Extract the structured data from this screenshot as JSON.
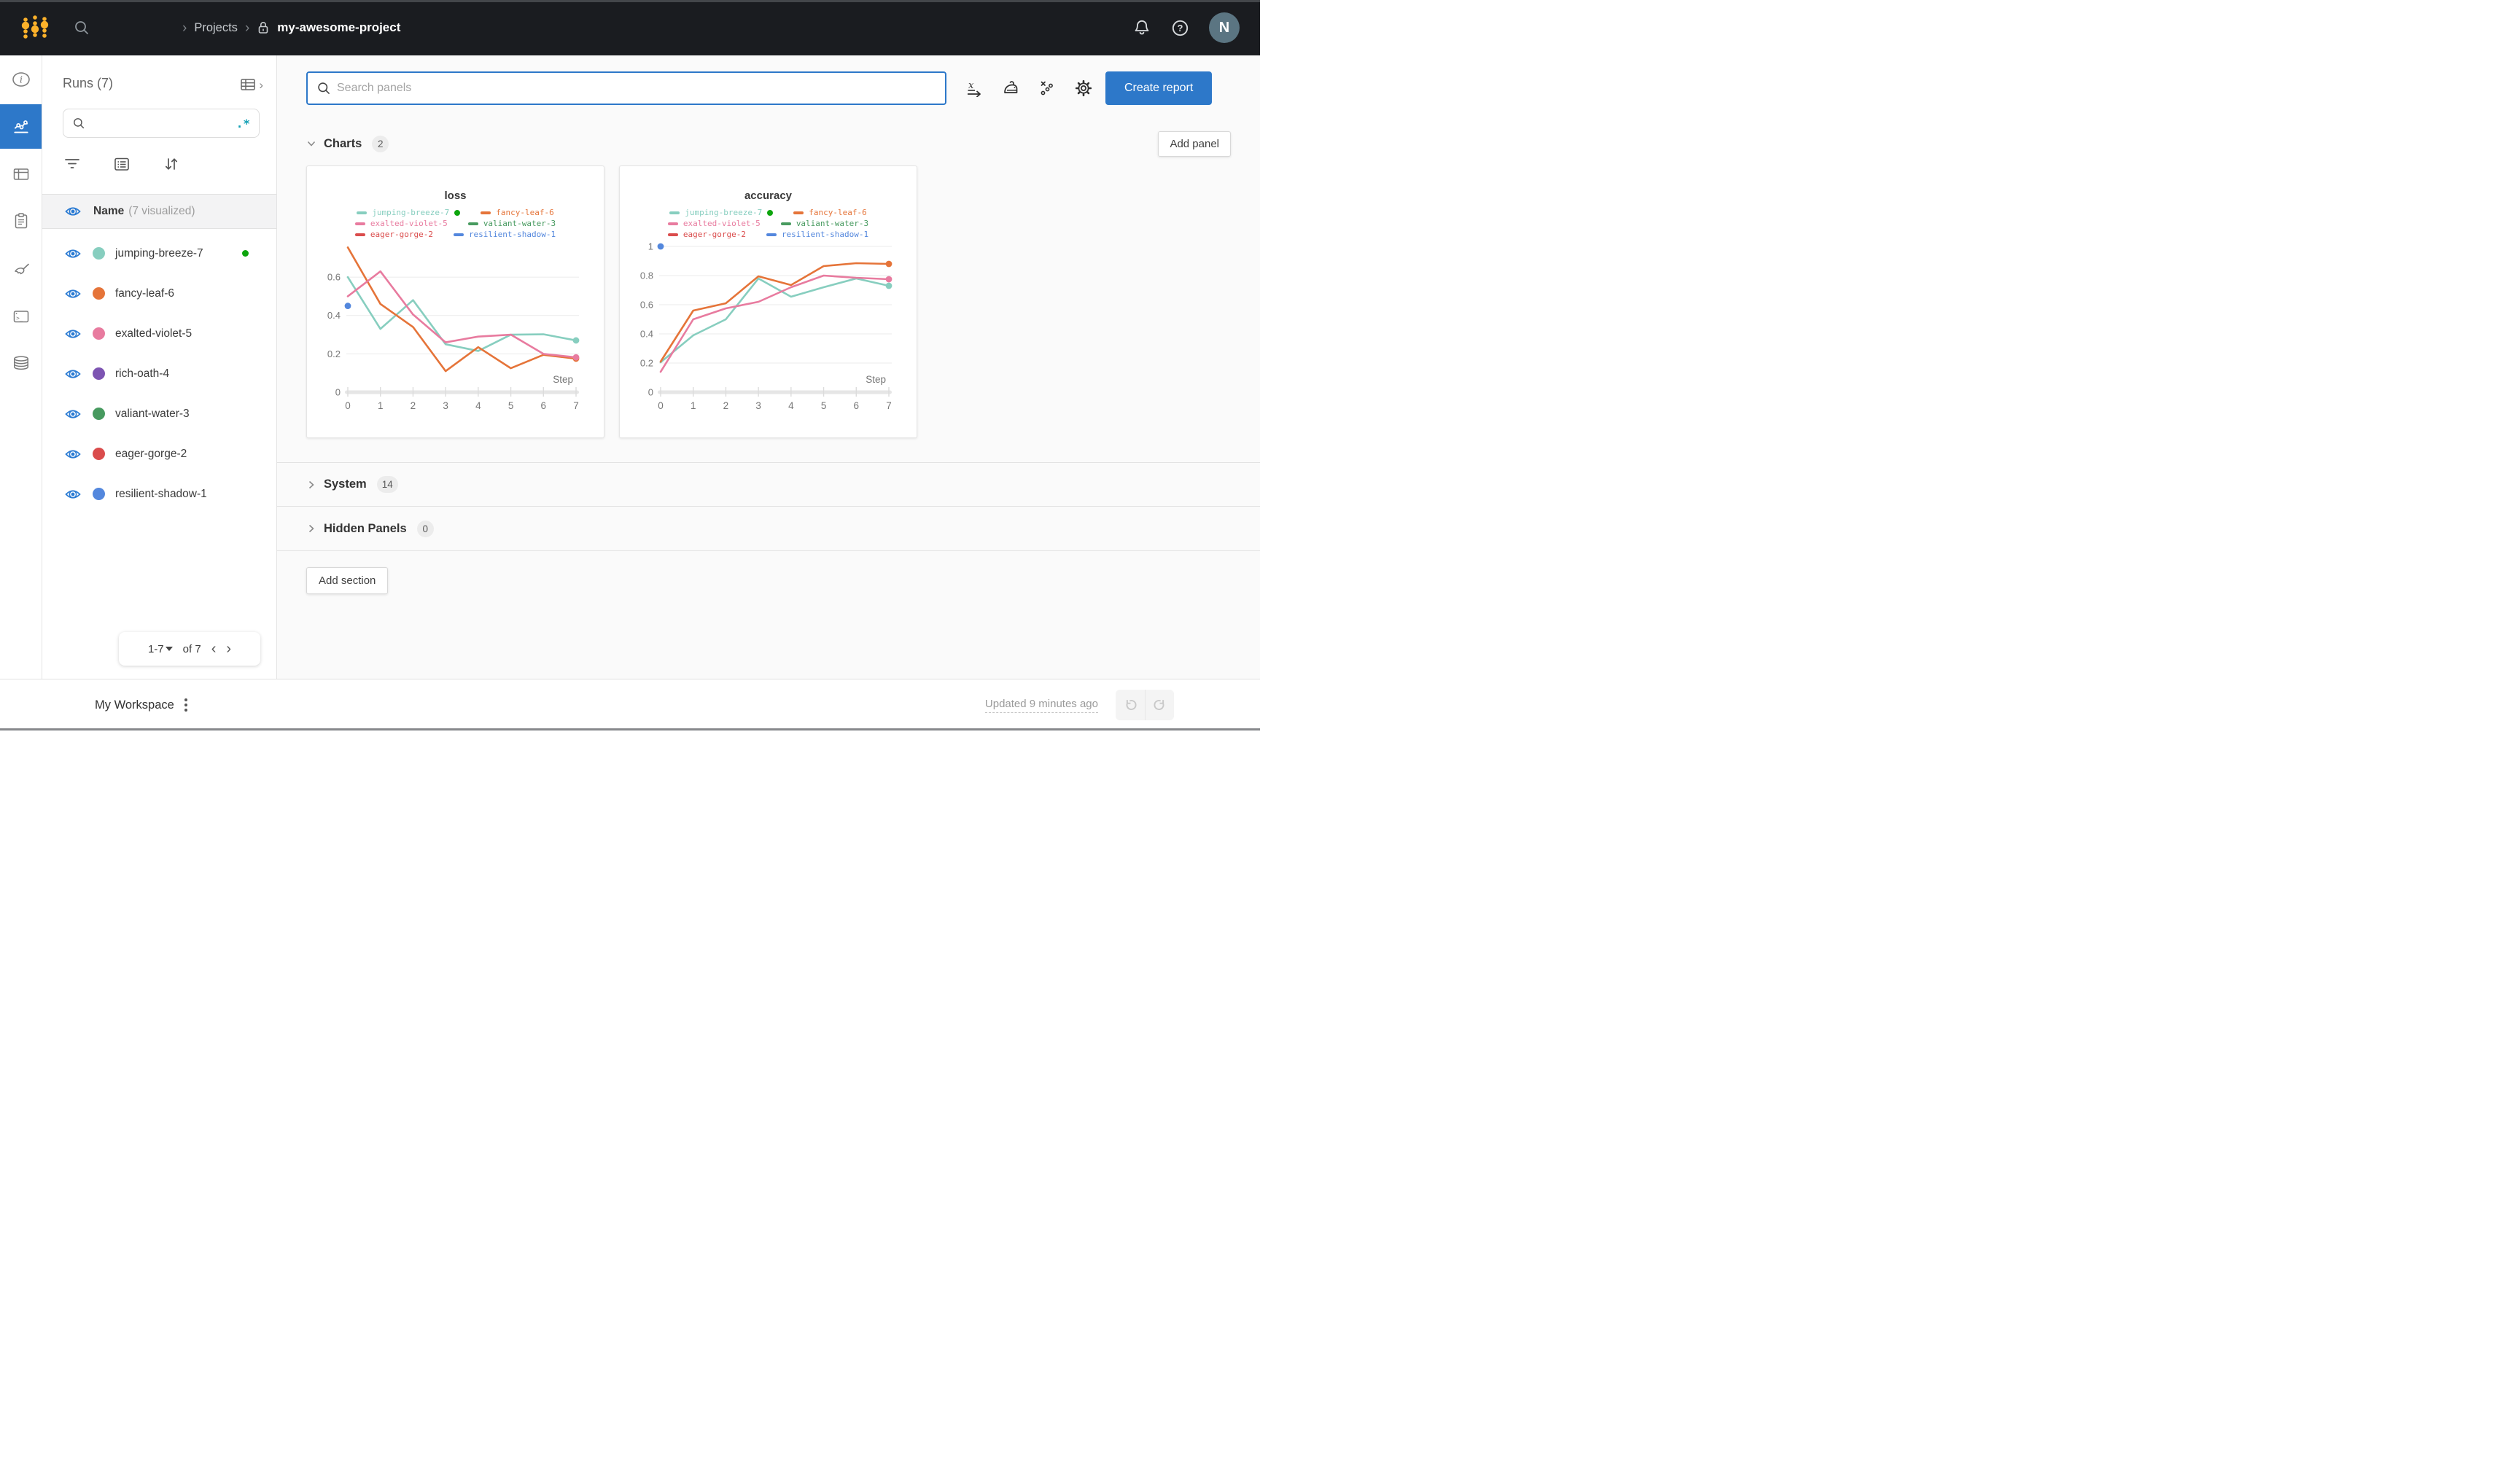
{
  "topbar": {
    "breadcrumb": {
      "projects": "Projects",
      "project": "my-awesome-project"
    },
    "avatar_initial": "N"
  },
  "sidebar": {
    "title": "Runs (7)",
    "regex_toggle": ".*",
    "name_header": {
      "label": "Name",
      "sub": "(7 visualized)"
    },
    "runs": [
      {
        "name": "jumping-breeze-7",
        "color": "#87CEBF",
        "running": true
      },
      {
        "name": "fancy-leaf-6",
        "color": "#E57439",
        "running": false
      },
      {
        "name": "exalted-violet-5",
        "color": "#E87B9F",
        "running": false
      },
      {
        "name": "rich-oath-4",
        "color": "#7D54B2",
        "running": false
      },
      {
        "name": "valiant-water-3",
        "color": "#479A5F",
        "running": false
      },
      {
        "name": "eager-gorge-2",
        "color": "#DA4C4C",
        "running": false
      },
      {
        "name": "resilient-shadow-1",
        "color": "#5387DD",
        "running": false
      }
    ],
    "pagination": {
      "range": "1-7",
      "of": "of 7"
    }
  },
  "main": {
    "search_placeholder": "Search panels",
    "create_report": "Create report",
    "charts_section": {
      "label": "Charts",
      "count": "2",
      "add_panel": "Add panel"
    },
    "system_section": {
      "label": "System",
      "count": "14"
    },
    "hidden_section": {
      "label": "Hidden Panels",
      "count": "0"
    },
    "add_section": "Add section"
  },
  "footer": {
    "workspace": "My Workspace",
    "updated": "Updated 9 minutes ago"
  },
  "colors": {
    "accent_blue": "#2d78c9",
    "brand_gold": "#fcb12a",
    "running_green": "#0da50d",
    "topbar_bg": "#1a1c20"
  },
  "chart_data": [
    {
      "type": "line",
      "title": "loss",
      "xlabel": "Step",
      "x": [
        0,
        1,
        2,
        3,
        4,
        5,
        6,
        7
      ],
      "ylim": [
        0,
        0.76
      ],
      "yticks": [
        0.2,
        0.4,
        0.6
      ],
      "legend_position": "top",
      "grid": true,
      "series": [
        {
          "name": "jumping-breeze-7",
          "color": "#87CEBF",
          "running": true,
          "values": [
            0.6,
            0.33,
            0.48,
            0.25,
            0.215,
            0.3,
            0.302,
            0.27
          ],
          "end_dot": true
        },
        {
          "name": "fancy-leaf-6",
          "color": "#E57439",
          "values": [
            0.755,
            0.46,
            0.34,
            0.11,
            0.235,
            0.125,
            0.195,
            0.175
          ],
          "end_dot": true
        },
        {
          "name": "exalted-violet-5",
          "color": "#E87B9F",
          "values": [
            0.5,
            0.63,
            0.405,
            0.26,
            0.29,
            0.3,
            0.2,
            0.182
          ],
          "end_dot": true
        },
        {
          "name": "valiant-water-3",
          "color": "#479A5F",
          "values": null
        },
        {
          "name": "eager-gorge-2",
          "color": "#DA4C4C",
          "values": null
        },
        {
          "name": "resilient-shadow-1",
          "color": "#5387DD",
          "values": null,
          "point": [
            0,
            0.45
          ]
        }
      ]
    },
    {
      "type": "line",
      "title": "accuracy",
      "xlabel": "Step",
      "x": [
        0,
        1,
        2,
        3,
        4,
        5,
        6,
        7
      ],
      "ylim": [
        0,
        1.0
      ],
      "yticks": [
        0.2,
        0.4,
        0.6,
        0.8,
        1
      ],
      "legend_position": "top",
      "grid": true,
      "series": [
        {
          "name": "jumping-breeze-7",
          "color": "#87CEBF",
          "running": true,
          "values": [
            0.205,
            0.39,
            0.5,
            0.78,
            0.655,
            0.72,
            0.78,
            0.73
          ],
          "end_dot": true
        },
        {
          "name": "fancy-leaf-6",
          "color": "#E57439",
          "values": [
            0.21,
            0.56,
            0.61,
            0.795,
            0.735,
            0.865,
            0.885,
            0.88
          ],
          "end_dot": true
        },
        {
          "name": "exalted-violet-5",
          "color": "#E87B9F",
          "values": [
            0.14,
            0.5,
            0.575,
            0.62,
            0.72,
            0.8,
            0.785,
            0.775
          ],
          "end_dot": true
        },
        {
          "name": "valiant-water-3",
          "color": "#479A5F",
          "values": null
        },
        {
          "name": "eager-gorge-2",
          "color": "#DA4C4C",
          "values": null
        },
        {
          "name": "resilient-shadow-1",
          "color": "#5387DD",
          "values": null,
          "point": [
            0,
            1.0
          ]
        }
      ]
    }
  ]
}
